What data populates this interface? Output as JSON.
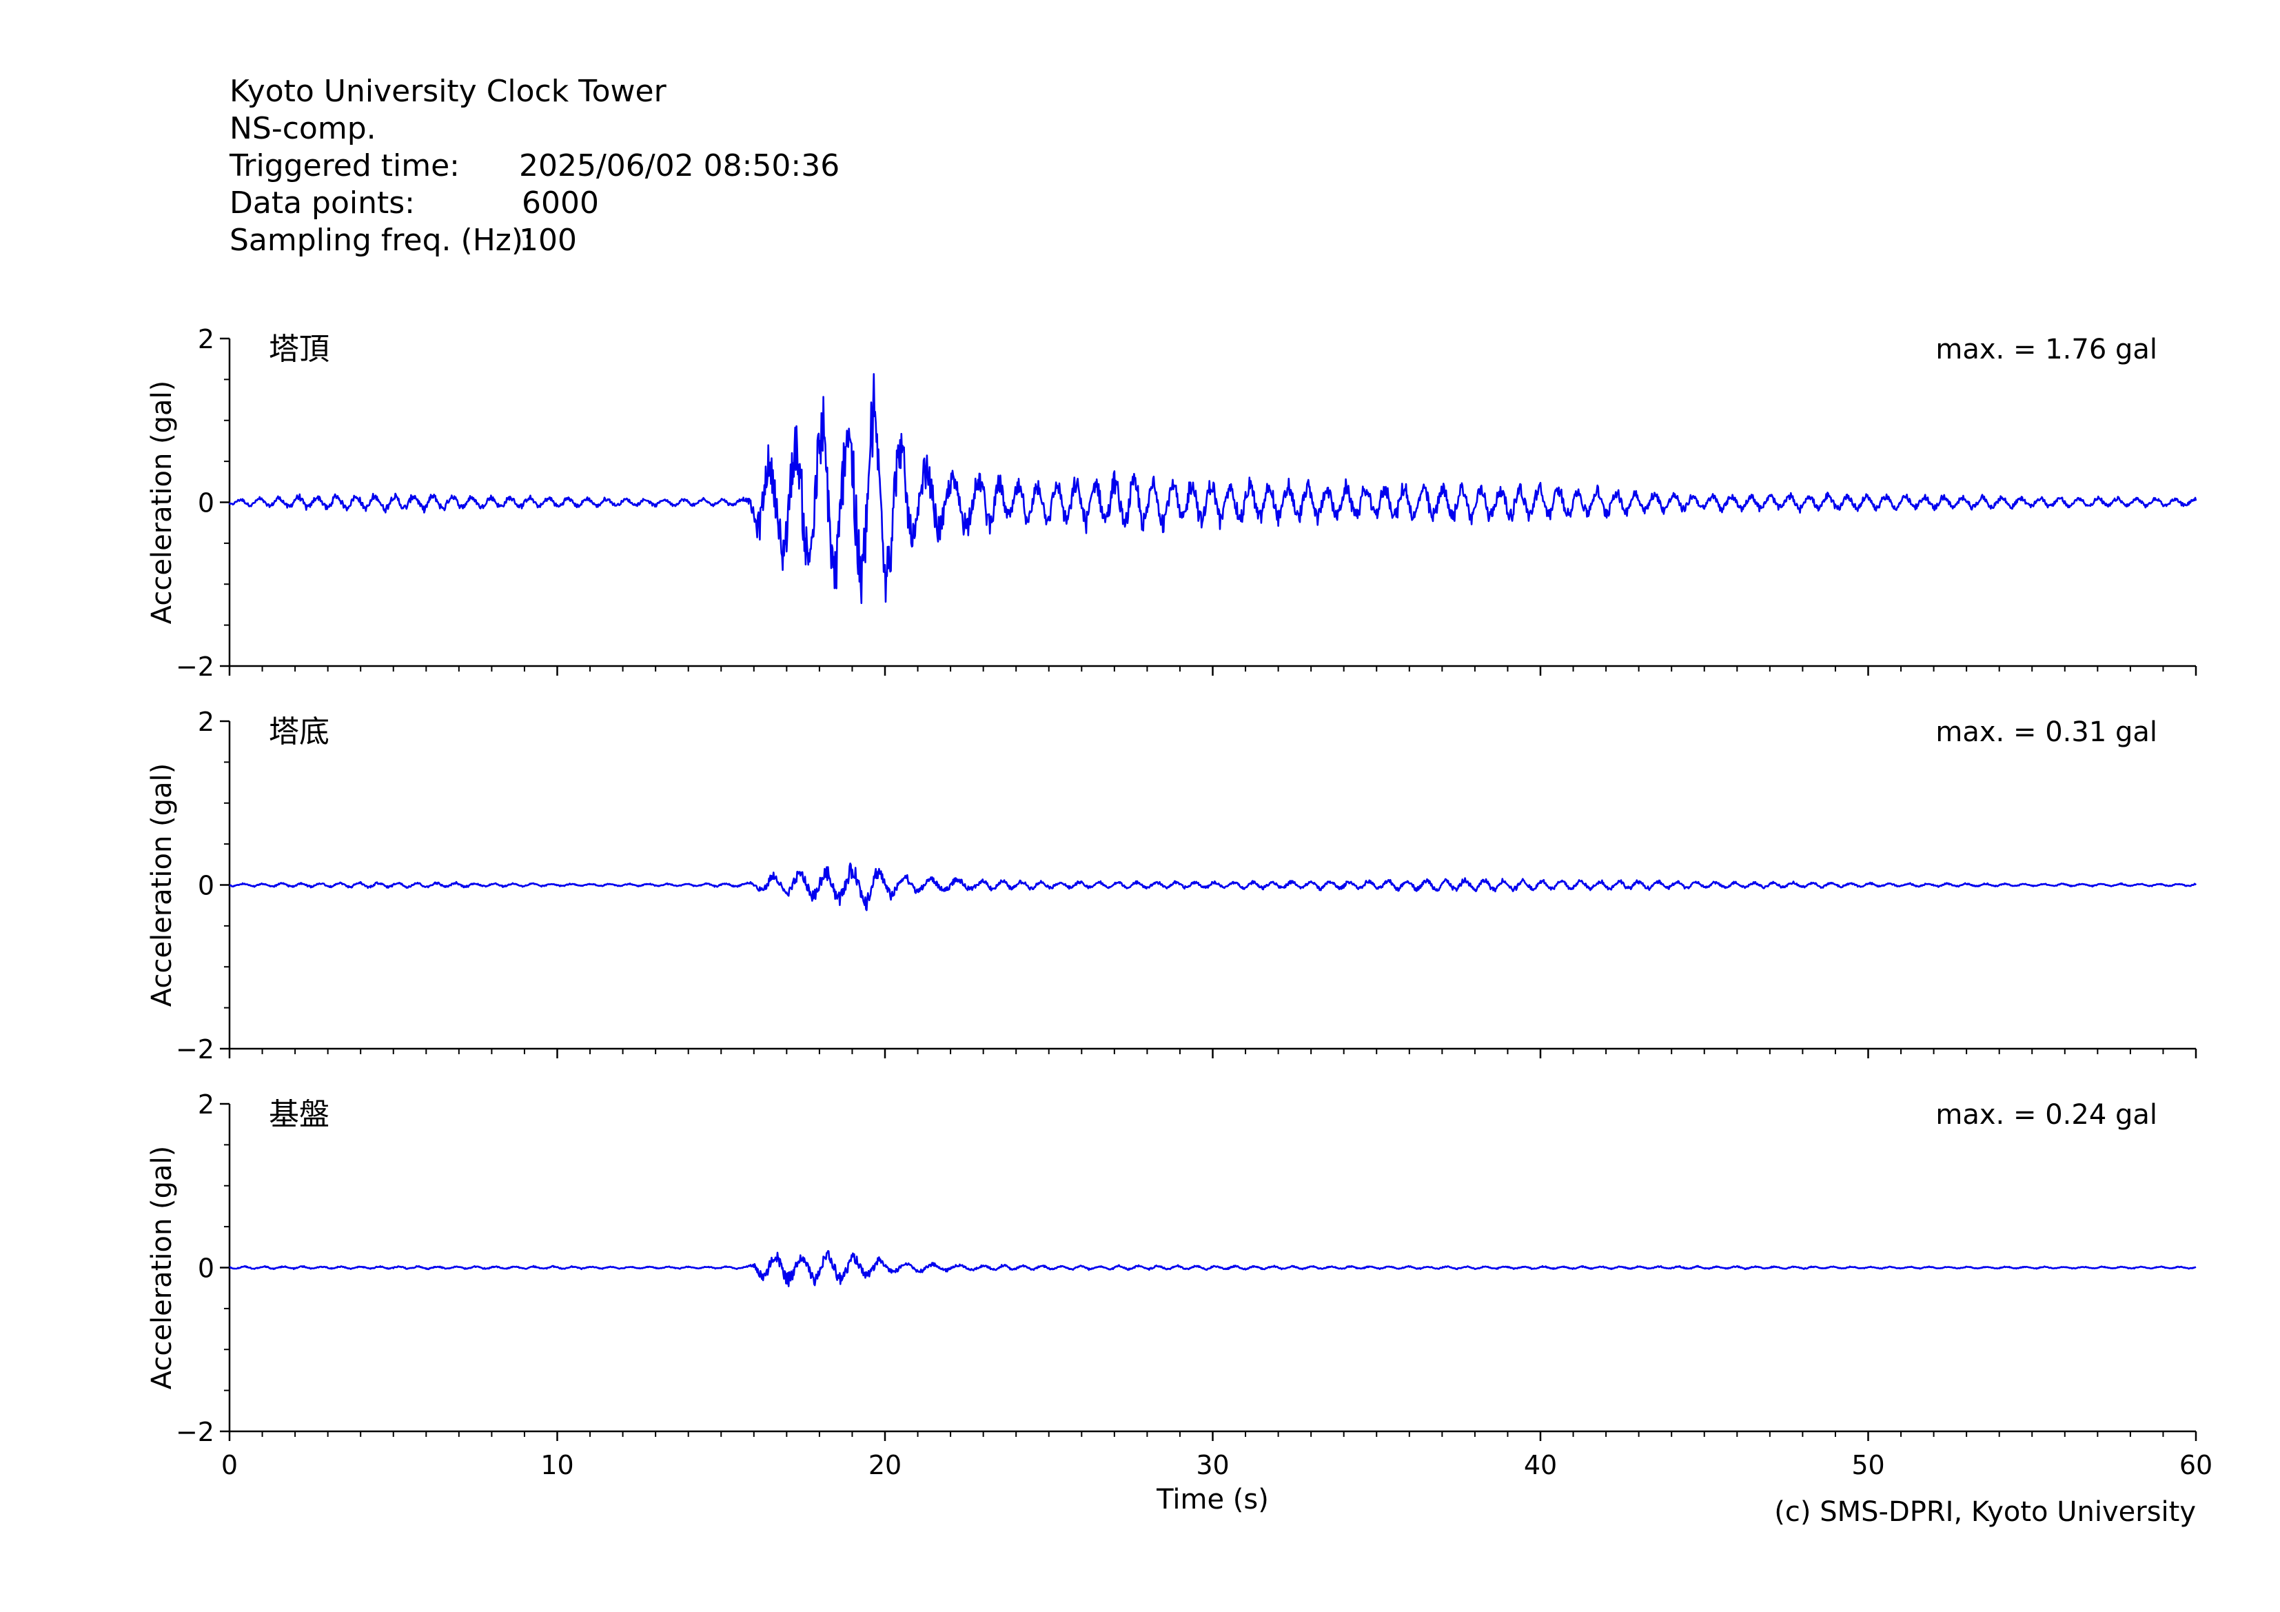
{
  "header": {
    "station": "Kyoto University Clock Tower",
    "component": "NS-comp.",
    "triggered_label": "Triggered time:",
    "triggered_value": "2025/06/02 08:50:36",
    "points_label": "Data points:",
    "points_value": "6000",
    "freq_label": "Sampling freq. (Hz):",
    "freq_value": "100"
  },
  "credit": "(c) SMS-DPRI, Kyoto University",
  "colors": {
    "trace": "#0000ee",
    "axis": "#000000"
  },
  "chart_data": [
    {
      "type": "line",
      "panel_label": "塔頂",
      "max_label": "max. = 1.76 gal",
      "ylabel": "Acceleration (gal)",
      "xlabel": "",
      "xlim": [
        0,
        60
      ],
      "ylim": [
        -2,
        2
      ],
      "yticks": [
        -2,
        0,
        2
      ],
      "x_tick_labels_visible": false,
      "envelope": {
        "description_points_t_s": [
          0,
          2,
          4,
          6,
          8,
          10,
          12,
          14,
          15.8,
          16.2,
          17,
          18,
          18.5,
          19,
          19.5,
          20,
          21,
          22,
          23,
          24,
          26,
          28,
          30,
          35,
          37,
          40,
          45,
          50,
          55,
          60
        ],
        "amplitude_gal": [
          0.04,
          0.1,
          0.12,
          0.12,
          0.09,
          0.08,
          0.06,
          0.05,
          0.06,
          0.6,
          1.0,
          1.3,
          1.45,
          1.6,
          1.76,
          1.3,
          0.7,
          0.45,
          0.4,
          0.3,
          0.35,
          0.4,
          0.35,
          0.25,
          0.3,
          0.25,
          0.12,
          0.12,
          0.08,
          0.06
        ]
      }
    },
    {
      "type": "line",
      "panel_label": "塔底",
      "max_label": "max. = 0.31 gal",
      "ylabel": "Acceleration (gal)",
      "xlabel": "",
      "xlim": [
        0,
        60
      ],
      "ylim": [
        -2,
        2
      ],
      "yticks": [
        -2,
        0,
        2
      ],
      "x_tick_labels_visible": false,
      "envelope": {
        "description_points_t_s": [
          0,
          2,
          4,
          6,
          8,
          10,
          12,
          14,
          15.8,
          16.5,
          17.5,
          18.5,
          19.5,
          20,
          21,
          22,
          23,
          25,
          30,
          35,
          38,
          40,
          42,
          45,
          50,
          55,
          60
        ],
        "amplitude_gal": [
          0.02,
          0.03,
          0.04,
          0.04,
          0.03,
          0.02,
          0.02,
          0.02,
          0.03,
          0.15,
          0.22,
          0.25,
          0.31,
          0.2,
          0.12,
          0.1,
          0.08,
          0.05,
          0.05,
          0.07,
          0.09,
          0.08,
          0.07,
          0.05,
          0.03,
          0.02,
          0.02
        ]
      }
    },
    {
      "type": "line",
      "panel_label": "基盤",
      "max_label": "max. = 0.24 gal",
      "ylabel": "Acceleration (gal)",
      "xlabel": "Time (s)",
      "xlim": [
        0,
        60
      ],
      "ylim": [
        -2,
        2
      ],
      "yticks": [
        -2,
        0,
        2
      ],
      "xticks": [
        0,
        10,
        20,
        30,
        40,
        50,
        60
      ],
      "x_tick_labels_visible": true,
      "envelope": {
        "description_points_t_s": [
          0,
          2,
          4,
          6,
          8,
          10,
          12,
          14,
          15.8,
          16.3,
          17,
          17.8,
          18.5,
          19.5,
          20.5,
          22,
          25,
          30,
          35,
          40,
          45,
          50,
          55,
          60
        ],
        "amplitude_gal": [
          0.02,
          0.02,
          0.02,
          0.02,
          0.02,
          0.02,
          0.015,
          0.015,
          0.02,
          0.2,
          0.22,
          0.2,
          0.24,
          0.15,
          0.08,
          0.05,
          0.03,
          0.03,
          0.02,
          0.02,
          0.02,
          0.015,
          0.015,
          0.015
        ]
      }
    }
  ]
}
